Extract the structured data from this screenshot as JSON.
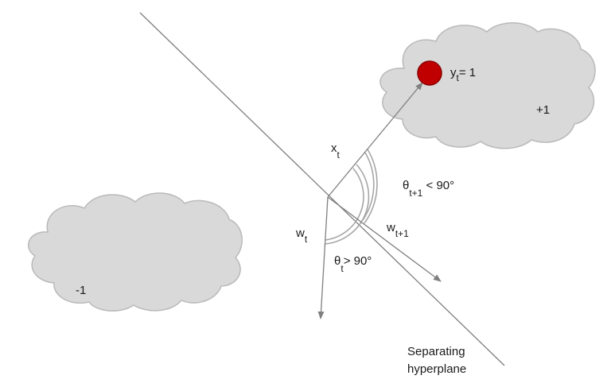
{
  "labels": {
    "xt_base": "x",
    "xt_sub": "t",
    "yt_base": "y",
    "yt_sub": "t",
    "yt_rest": "= 1",
    "plus_one": "+1",
    "minus_one": "-1",
    "theta_next_base": "θ",
    "theta_next_sub": "t+1",
    "theta_next_rest": " < 90°",
    "wt_base": "w",
    "wt_sub": "t",
    "wt1_base": "w",
    "wt1_sub": "t+1",
    "theta_t_base": "θ",
    "theta_t_sub": "t",
    "theta_t_rest": "> 90°",
    "hyperplane_line1": "Separating",
    "hyperplane_line2": "hyperplane"
  },
  "colors": {
    "cloud_fill": "#d9d9d9",
    "cloud_stroke": "#b9b9b9",
    "line": "#7f7f7f",
    "arc": "#a6a6a6",
    "point_fill": "#c00000",
    "point_stroke": "#8a0000"
  }
}
